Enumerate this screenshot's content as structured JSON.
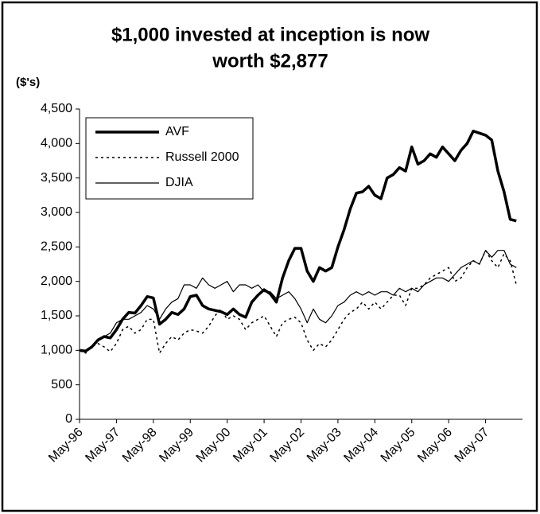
{
  "chart_data": {
    "type": "line",
    "title": [
      "$1,000 invested at inception is now",
      "worth $2,877"
    ],
    "y_label": "($'s)",
    "categories": [
      "May-96",
      null,
      null,
      null,
      null,
      null,
      "May-97",
      null,
      null,
      null,
      null,
      null,
      "May-98",
      null,
      null,
      null,
      null,
      null,
      "May-99",
      null,
      null,
      null,
      null,
      null,
      "May-00",
      null,
      null,
      null,
      null,
      null,
      "May-01",
      null,
      null,
      null,
      null,
      null,
      "May-02",
      null,
      null,
      null,
      null,
      null,
      "May-03",
      null,
      null,
      null,
      null,
      null,
      "May-04",
      null,
      null,
      null,
      null,
      null,
      "May-05",
      null,
      null,
      null,
      null,
      null,
      "May-06",
      null,
      null,
      null,
      null,
      null,
      "May-07",
      null,
      null,
      null,
      null,
      null
    ],
    "series": [
      {
        "name": "AVF",
        "color": "#000000",
        "line_style": "solid",
        "line_width": 3.5,
        "values": [
          1000,
          990,
          1050,
          1150,
          1200,
          1180,
          1300,
          1450,
          1550,
          1540,
          1650,
          1780,
          1760,
          1380,
          1450,
          1550,
          1520,
          1600,
          1780,
          1800,
          1650,
          1600,
          1580,
          1560,
          1520,
          1600,
          1520,
          1480,
          1700,
          1800,
          1880,
          1820,
          1700,
          2050,
          2300,
          2480,
          2480,
          2150,
          2000,
          2200,
          2150,
          2200,
          2500,
          2750,
          3050,
          3280,
          3300,
          3380,
          3250,
          3200,
          3500,
          3550,
          3650,
          3600,
          3950,
          3700,
          3750,
          3850,
          3800,
          3950,
          3850,
          3750,
          3900,
          4000,
          4180,
          4150,
          4120,
          4050,
          3600,
          3300,
          2900,
          2877
        ]
      },
      {
        "name": "Russell 2000",
        "color": "#000000",
        "line_style": "dotted",
        "line_width": 1.5,
        "values": [
          1000,
          960,
          1050,
          1100,
          1050,
          980,
          1100,
          1300,
          1350,
          1250,
          1300,
          1450,
          1450,
          960,
          1100,
          1200,
          1150,
          1250,
          1300,
          1280,
          1250,
          1350,
          1500,
          1600,
          1450,
          1500,
          1450,
          1300,
          1400,
          1450,
          1500,
          1350,
          1200,
          1400,
          1450,
          1480,
          1400,
          1150,
          1000,
          1100,
          1050,
          1150,
          1300,
          1450,
          1550,
          1600,
          1700,
          1600,
          1700,
          1600,
          1700,
          1800,
          1800,
          1650,
          1900,
          1900,
          1950,
          2050,
          2100,
          2150,
          2200,
          2000,
          2050,
          2200,
          2300,
          2250,
          2450,
          2300,
          2200,
          2400,
          2300,
          1950
        ]
      },
      {
        "name": "DJIA",
        "color": "#000000",
        "line_style": "solid",
        "line_width": 1.2,
        "values": [
          1000,
          990,
          1050,
          1150,
          1200,
          1250,
          1400,
          1450,
          1450,
          1500,
          1550,
          1650,
          1600,
          1450,
          1600,
          1700,
          1750,
          1950,
          1950,
          1900,
          2050,
          1950,
          1900,
          1950,
          2000,
          1850,
          1950,
          1950,
          1900,
          1950,
          1850,
          1850,
          1750,
          1800,
          1850,
          1750,
          1600,
          1400,
          1600,
          1450,
          1400,
          1500,
          1650,
          1700,
          1800,
          1850,
          1800,
          1850,
          1800,
          1850,
          1850,
          1800,
          1900,
          1850,
          1900,
          1850,
          1950,
          2000,
          2050,
          2050,
          2000,
          2100,
          2200,
          2250,
          2300,
          2250,
          2450,
          2350,
          2450,
          2450,
          2250,
          2200
        ]
      }
    ],
    "ylim": [
      0,
      4500
    ],
    "yticks": [
      0,
      500,
      {
        "value": 1000,
        "label": "1,000"
      },
      {
        "value": 1500,
        "label": "1,500"
      },
      {
        "value": 2000,
        "label": "2,000"
      },
      {
        "value": 2500,
        "label": "2,500"
      },
      {
        "value": 3000,
        "label": "3,000"
      },
      {
        "value": 3500,
        "label": "3,500"
      },
      {
        "value": 4000,
        "label": "4,000"
      },
      {
        "value": 4500,
        "label": "4,500"
      }
    ],
    "grid": false,
    "legend": "top-left"
  }
}
